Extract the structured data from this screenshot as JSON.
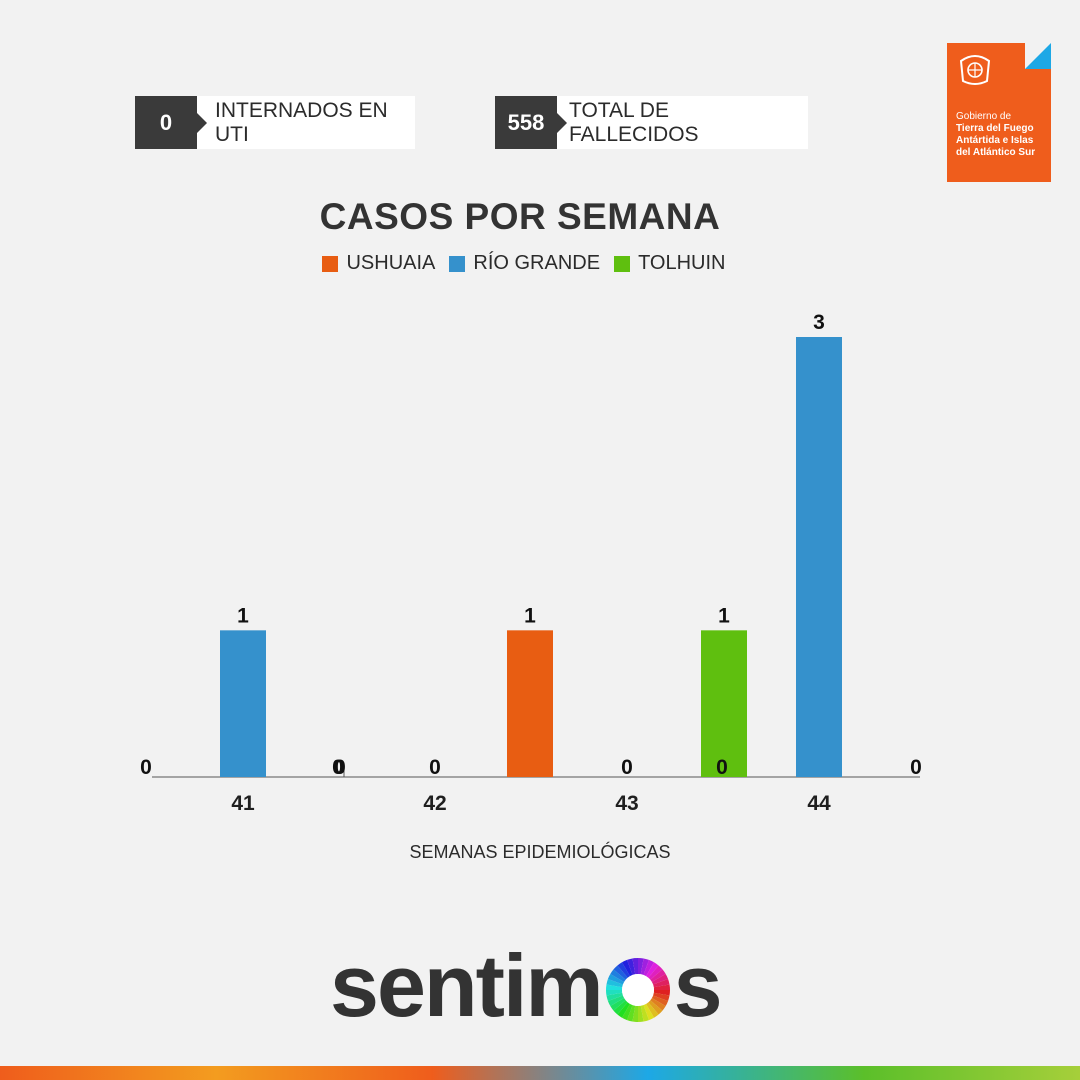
{
  "stats": [
    {
      "value": "0",
      "label": "INTERNADOS EN UTI"
    },
    {
      "value": "558",
      "label": "TOTAL DE FALLECIDOS"
    }
  ],
  "logo": {
    "line1": "Gobierno de",
    "line2": "Tierra del Fuego",
    "line3": "Antártida e Islas",
    "line4": "del Atlántico Sur",
    "bg_color": "#ef5d1c",
    "accent_color": "#1da8e6"
  },
  "brand": {
    "pre": "sentim",
    "post": "s",
    "icon": "rainbow-ring-icon"
  },
  "chart_data": {
    "type": "bar",
    "title": "CASOS POR SEMANA",
    "xlabel": "SEMANAS EPIDEMIOLÓGICAS",
    "ylabel": "",
    "categories": [
      "41",
      "42",
      "43",
      "44"
    ],
    "ylim": [
      0,
      3
    ],
    "grid": false,
    "legend_position": "top-center",
    "series": [
      {
        "name": "USHUAIA",
        "color": "#e85d12",
        "values": [
          0,
          0,
          1,
          0
        ]
      },
      {
        "name": "RÍO GRANDE",
        "color": "#3591cc",
        "values": [
          1,
          0,
          0,
          3
        ]
      },
      {
        "name": "TOLHUIN",
        "color": "#5fbf0f",
        "values": [
          0,
          0,
          1,
          0
        ]
      }
    ]
  }
}
